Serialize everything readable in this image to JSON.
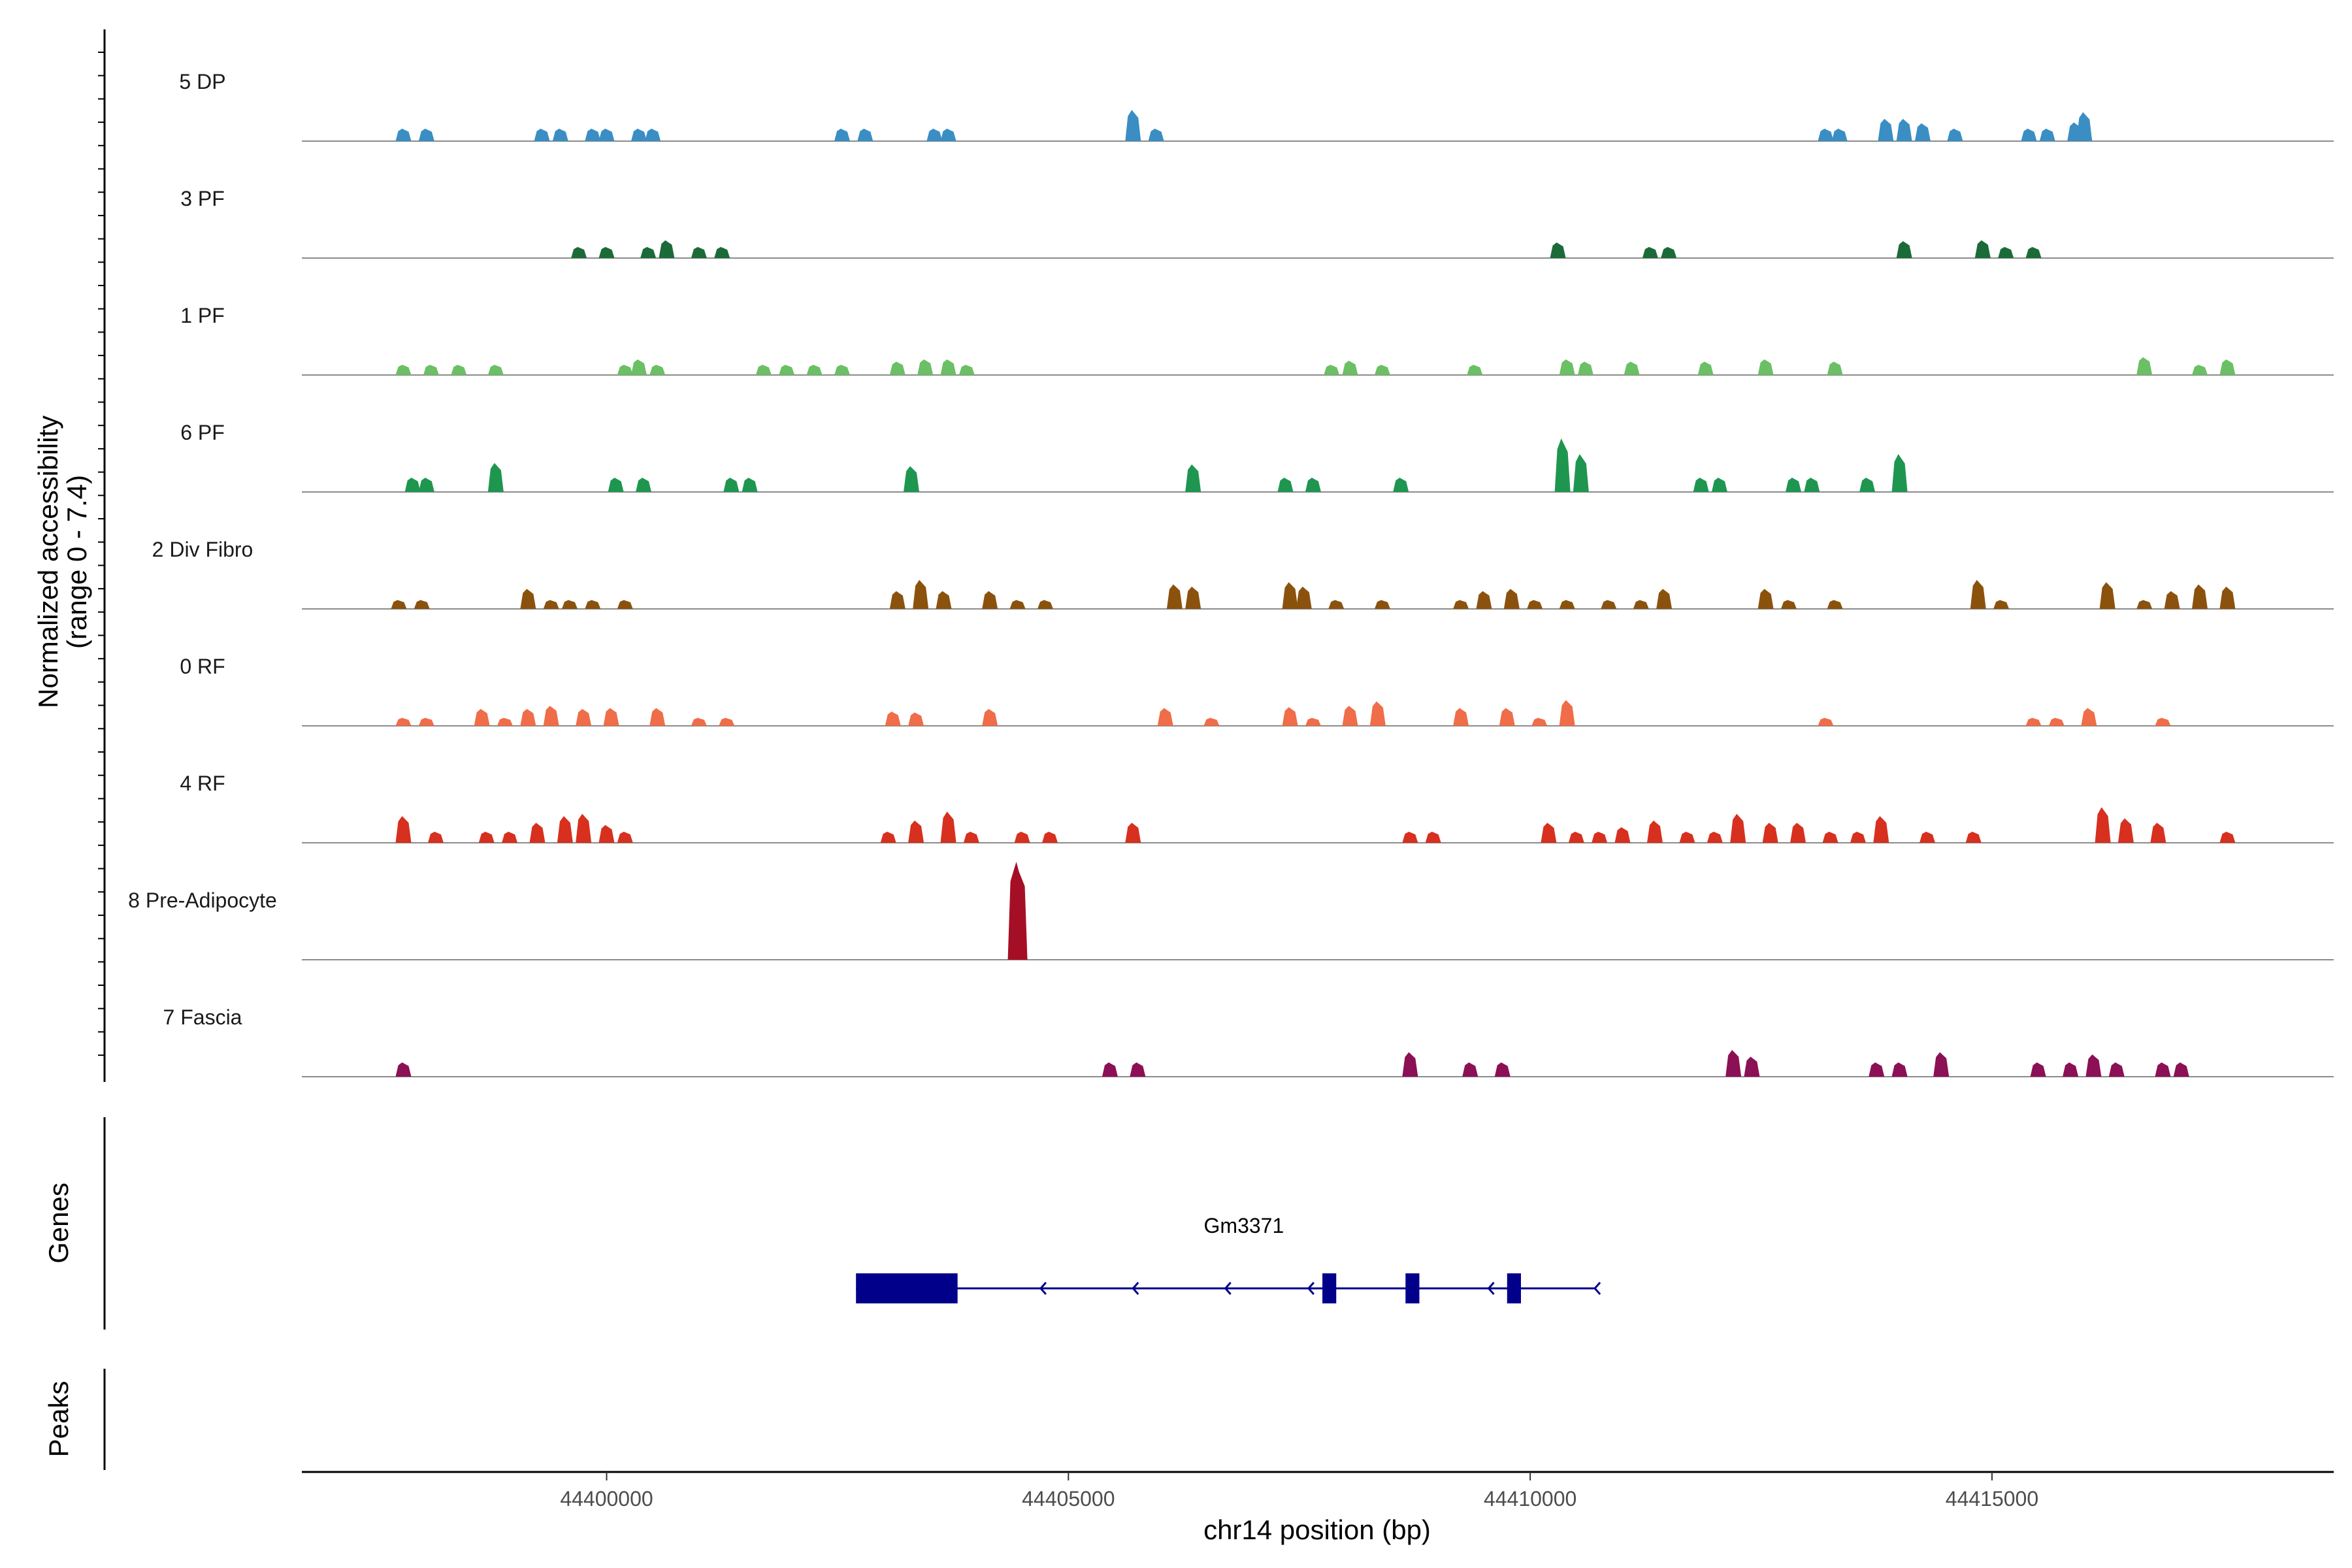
{
  "chart_data": {
    "type": "area",
    "title": "",
    "chromosome": "chr14",
    "xlabel": "chr14 position (bp)",
    "ylabel": "Normalized accessibility",
    "ylabel_range": "(range 0 - 7.4)",
    "xlim": [
      44396700,
      44418700
    ],
    "ylim": [
      0,
      7.4
    ],
    "x_ticks": [
      44400000,
      44405000,
      44410000,
      44415000
    ],
    "x_tick_labels": [
      "44400000",
      "44405000",
      "44410000",
      "44415000"
    ],
    "genes_panel_label": "Genes",
    "peaks_panel_label": "Peaks",
    "series": [
      {
        "name": "5 DP",
        "color": "#3a8ec4",
        "peaks": [
          [
            44397800,
            2.8
          ],
          [
            44398050,
            2.8
          ],
          [
            44399300,
            2.8
          ],
          [
            44399500,
            2.8
          ],
          [
            44399850,
            2.8
          ],
          [
            44400000,
            2.8
          ],
          [
            44400350,
            2.8
          ],
          [
            44400500,
            2.8
          ],
          [
            44402550,
            2.8
          ],
          [
            44402800,
            2.8
          ],
          [
            44403550,
            2.8
          ],
          [
            44403700,
            2.8
          ],
          [
            44405700,
            7.0
          ],
          [
            44405950,
            2.8
          ],
          [
            44413200,
            2.8
          ],
          [
            44413350,
            2.8
          ],
          [
            44413850,
            5.0
          ],
          [
            44414050,
            5.0
          ],
          [
            44414250,
            4.0
          ],
          [
            44414600,
            2.8
          ],
          [
            44415400,
            2.8
          ],
          [
            44415600,
            2.8
          ],
          [
            44415900,
            4.2
          ],
          [
            44416000,
            6.5
          ]
        ]
      },
      {
        "name": "3 PF",
        "color": "#1b6b38",
        "peaks": [
          [
            44399700,
            2.5
          ],
          [
            44400000,
            2.5
          ],
          [
            44400450,
            2.5
          ],
          [
            44400650,
            4.0
          ],
          [
            44401000,
            2.5
          ],
          [
            44401250,
            2.5
          ],
          [
            44410300,
            3.5
          ],
          [
            44411300,
            2.5
          ],
          [
            44411500,
            2.5
          ],
          [
            44414050,
            3.8
          ],
          [
            44414900,
            4.0
          ],
          [
            44415150,
            2.5
          ],
          [
            44415450,
            2.5
          ]
        ]
      },
      {
        "name": "1 PF",
        "color": "#6bbf64",
        "peaks": [
          [
            44397800,
            2.3
          ],
          [
            44398100,
            2.3
          ],
          [
            44398400,
            2.3
          ],
          [
            44398800,
            2.3
          ],
          [
            44400200,
            2.3
          ],
          [
            44400350,
            3.5
          ],
          [
            44400550,
            2.3
          ],
          [
            44401700,
            2.3
          ],
          [
            44401950,
            2.3
          ],
          [
            44402250,
            2.3
          ],
          [
            44402550,
            2.3
          ],
          [
            44403150,
            3.0
          ],
          [
            44403450,
            3.5
          ],
          [
            44403700,
            3.5
          ],
          [
            44403900,
            2.3
          ],
          [
            44407850,
            2.3
          ],
          [
            44408050,
            3.2
          ],
          [
            44408400,
            2.3
          ],
          [
            44409400,
            2.3
          ],
          [
            44410400,
            3.5
          ],
          [
            44410600,
            3.0
          ],
          [
            44411100,
            3.0
          ],
          [
            44411900,
            3.0
          ],
          [
            44412550,
            3.5
          ],
          [
            44413300,
            3.0
          ],
          [
            44416650,
            4.0
          ],
          [
            44417250,
            2.3
          ],
          [
            44417550,
            3.5
          ]
        ]
      },
      {
        "name": "6 PF",
        "color": "#1f9650",
        "peaks": [
          [
            44397900,
            3.2
          ],
          [
            44398050,
            3.2
          ],
          [
            44398800,
            6.5
          ],
          [
            44400100,
            3.2
          ],
          [
            44400400,
            3.2
          ],
          [
            44401350,
            3.2
          ],
          [
            44401550,
            3.2
          ],
          [
            44403300,
            5.8
          ],
          [
            44406350,
            6.2
          ],
          [
            44407350,
            3.2
          ],
          [
            44407650,
            3.2
          ],
          [
            44408600,
            3.2
          ],
          [
            44410350,
            12.0
          ],
          [
            44410550,
            8.5
          ],
          [
            44411850,
            3.2
          ],
          [
            44412050,
            3.2
          ],
          [
            44412850,
            3.2
          ],
          [
            44413050,
            3.2
          ],
          [
            44413650,
            3.2
          ],
          [
            44414000,
            8.5
          ]
        ]
      },
      {
        "name": "2 Div Fibro",
        "color": "#8b520e",
        "peaks": [
          [
            44397750,
            2.0
          ],
          [
            44398000,
            2.0
          ],
          [
            44399150,
            4.5
          ],
          [
            44399400,
            2.0
          ],
          [
            44399600,
            2.0
          ],
          [
            44399850,
            2.0
          ],
          [
            44400200,
            2.0
          ],
          [
            44403150,
            4.0
          ],
          [
            44403400,
            6.5
          ],
          [
            44403650,
            4.0
          ],
          [
            44404150,
            4.0
          ],
          [
            44404450,
            2.0
          ],
          [
            44404750,
            2.0
          ],
          [
            44406150,
            5.5
          ],
          [
            44406350,
            5.0
          ],
          [
            44407400,
            6.0
          ],
          [
            44407550,
            5.0
          ],
          [
            44407900,
            2.0
          ],
          [
            44408400,
            2.0
          ],
          [
            44409250,
            2.0
          ],
          [
            44409500,
            4.0
          ],
          [
            44409800,
            4.5
          ],
          [
            44410050,
            2.0
          ],
          [
            44410400,
            2.0
          ],
          [
            44410850,
            2.0
          ],
          [
            44411200,
            2.0
          ],
          [
            44411450,
            4.5
          ],
          [
            44412550,
            4.5
          ],
          [
            44412800,
            2.0
          ],
          [
            44413300,
            2.0
          ],
          [
            44414850,
            6.5
          ],
          [
            44415100,
            2.0
          ],
          [
            44416250,
            6.0
          ],
          [
            44416650,
            2.0
          ],
          [
            44416950,
            4.0
          ],
          [
            44417250,
            5.5
          ],
          [
            44417550,
            5.0
          ]
        ]
      },
      {
        "name": "0 RF",
        "color": "#ef6d49",
        "peaks": [
          [
            44397800,
            1.8
          ],
          [
            44398050,
            1.8
          ],
          [
            44398650,
            3.8
          ],
          [
            44398900,
            1.8
          ],
          [
            44399150,
            3.8
          ],
          [
            44399400,
            4.5
          ],
          [
            44399750,
            3.8
          ],
          [
            44400050,
            4.0
          ],
          [
            44400550,
            4.0
          ],
          [
            44401000,
            1.8
          ],
          [
            44401300,
            1.8
          ],
          [
            44403100,
            3.2
          ],
          [
            44403350,
            3.0
          ],
          [
            44404150,
            3.8
          ],
          [
            44406050,
            4.0
          ],
          [
            44406550,
            1.8
          ],
          [
            44407400,
            4.2
          ],
          [
            44407650,
            1.8
          ],
          [
            44408050,
            4.5
          ],
          [
            44408350,
            5.5
          ],
          [
            44409250,
            4.0
          ],
          [
            44409750,
            4.0
          ],
          [
            44410100,
            1.8
          ],
          [
            44410400,
            5.8
          ],
          [
            44413200,
            1.8
          ],
          [
            44415450,
            1.8
          ],
          [
            44415700,
            1.8
          ],
          [
            44416050,
            4.0
          ],
          [
            44416850,
            1.8
          ]
        ]
      },
      {
        "name": "4 RF",
        "color": "#d7301f",
        "peaks": [
          [
            44397800,
            6.0
          ],
          [
            44398150,
            2.5
          ],
          [
            44398700,
            2.5
          ],
          [
            44398950,
            2.5
          ],
          [
            44399250,
            4.5
          ],
          [
            44399550,
            6.0
          ],
          [
            44399750,
            6.5
          ],
          [
            44400000,
            4.0
          ],
          [
            44400200,
            2.5
          ],
          [
            44403050,
            2.5
          ],
          [
            44403350,
            5.0
          ],
          [
            44403700,
            7.0
          ],
          [
            44403950,
            2.5
          ],
          [
            44404500,
            2.5
          ],
          [
            44404800,
            2.5
          ],
          [
            44405700,
            4.5
          ],
          [
            44408700,
            2.5
          ],
          [
            44408950,
            2.5
          ],
          [
            44410200,
            4.5
          ],
          [
            44410500,
            2.5
          ],
          [
            44410750,
            2.5
          ],
          [
            44411000,
            3.5
          ],
          [
            44411350,
            5.0
          ],
          [
            44411700,
            2.5
          ],
          [
            44412000,
            2.5
          ],
          [
            44412250,
            6.5
          ],
          [
            44412600,
            4.5
          ],
          [
            44412900,
            4.5
          ],
          [
            44413250,
            2.5
          ],
          [
            44413550,
            2.5
          ],
          [
            44413800,
            6.0
          ],
          [
            44414300,
            2.5
          ],
          [
            44414800,
            2.5
          ],
          [
            44416200,
            8.0
          ],
          [
            44416450,
            5.5
          ],
          [
            44416800,
            4.5
          ],
          [
            44417550,
            2.5
          ]
        ]
      },
      {
        "name": "8 Pre-Adipocyte",
        "color": "#a50f26",
        "peaks": [
          [
            44404450,
            22.0
          ]
        ]
      },
      {
        "name": "7 Fascia",
        "color": "#8c1055",
        "peaks": [
          [
            44397800,
            3.2
          ],
          [
            44405450,
            3.2
          ],
          [
            44405750,
            3.2
          ],
          [
            44408700,
            5.5
          ],
          [
            44409350,
            3.2
          ],
          [
            44409700,
            3.2
          ],
          [
            44412200,
            6.0
          ],
          [
            44412400,
            4.5
          ],
          [
            44413750,
            3.2
          ],
          [
            44414000,
            3.2
          ],
          [
            44414450,
            5.5
          ],
          [
            44415500,
            3.2
          ],
          [
            44415850,
            3.2
          ],
          [
            44416100,
            5.0
          ],
          [
            44416350,
            3.2
          ],
          [
            44416850,
            3.2
          ],
          [
            44417050,
            3.2
          ]
        ]
      }
    ],
    "genes": [
      {
        "name": "Gm3371",
        "strand": "-",
        "color": "#00008b",
        "start": 44402700,
        "end": 44410700,
        "exons": [
          [
            44402700,
            44403800,
            "coding"
          ],
          [
            44407750,
            44407900,
            "coding"
          ],
          [
            44408650,
            44408800,
            "coding"
          ],
          [
            44409750,
            44409900,
            "coding"
          ]
        ],
        "arrows": [
          44404700,
          44405700,
          44406700,
          44407600,
          44409550,
          44410700
        ]
      }
    ]
  }
}
